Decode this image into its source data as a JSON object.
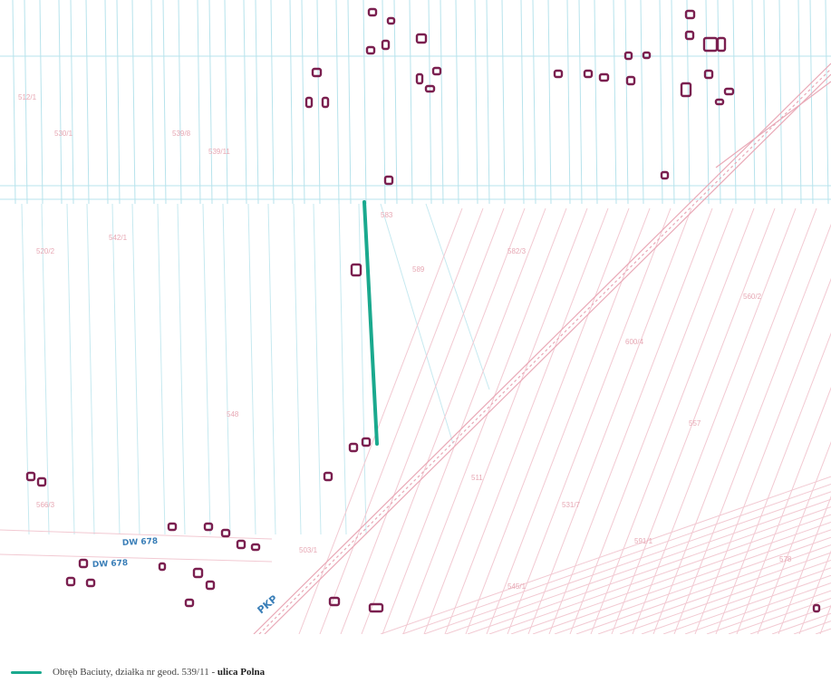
{
  "map": {
    "colors": {
      "parcel_lines": "#b7e3ec",
      "parcel_lines_south": "#f2c9d2",
      "buildings": "#7a1f4f",
      "highlight_road": "#1aa98e",
      "label_blue": "#3b7fb8"
    },
    "road_labels": {
      "dw678_upper": "DW 678",
      "dw678_lower": "DW 678",
      "railway": "PKP"
    },
    "parcel_numbers": [
      "512/1",
      "530/1",
      "539/8",
      "539/11",
      "583",
      "589",
      "520/2",
      "542/1",
      "548",
      "582/3",
      "600/4",
      "557",
      "560/2",
      "511",
      "531/7",
      "591/1",
      "545/1",
      "566/3",
      "503/1",
      "578"
    ]
  },
  "legend": {
    "description": "Obręb Baciuty, działka nr geod. 539/11 - ",
    "bold": "ulica Polna",
    "line_color": "#1aa98e"
  }
}
